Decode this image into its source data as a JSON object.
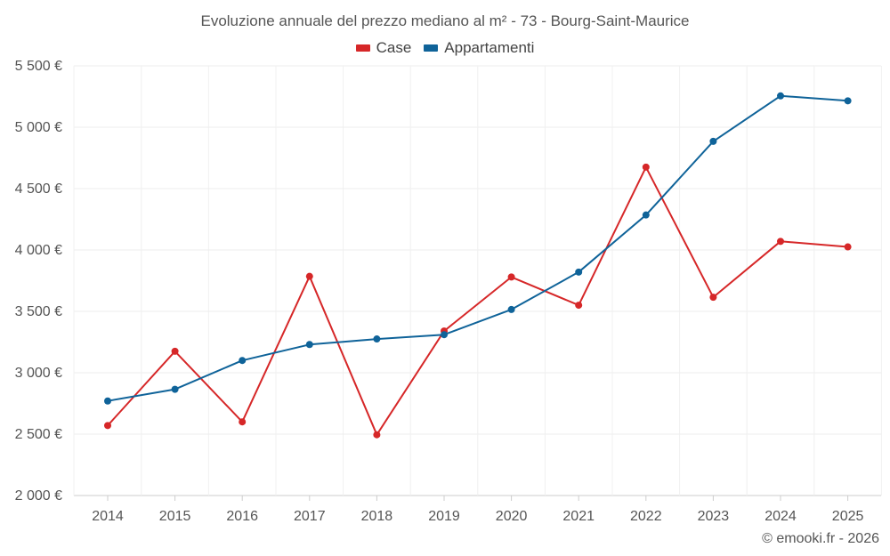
{
  "chart_data": {
    "type": "line",
    "title": "Evoluzione annuale del prezzo mediano al m² - 73 - Bourg-Saint-Maurice",
    "categories": [
      "2014",
      "2015",
      "2016",
      "2017",
      "2018",
      "2019",
      "2020",
      "2021",
      "2022",
      "2023",
      "2024",
      "2025"
    ],
    "series": [
      {
        "name": "Case",
        "color": "#d62728",
        "values": [
          2570,
          3175,
          2600,
          3785,
          2495,
          3340,
          3780,
          3550,
          4675,
          3615,
          4070,
          4025
        ]
      },
      {
        "name": "Appartamenti",
        "color": "#0f6399",
        "values": [
          2770,
          2865,
          3100,
          3230,
          3275,
          3310,
          3515,
          3820,
          4285,
          4885,
          5255,
          5215
        ]
      }
    ],
    "ylim": [
      2000,
      5500
    ],
    "yticks": [
      2000,
      2500,
      3000,
      3500,
      4000,
      4500,
      5000,
      5500
    ],
    "ytick_labels": [
      "2 000 €",
      "2 500 €",
      "3 000 €",
      "3 500 €",
      "4 000 €",
      "4 500 €",
      "5 000 €",
      "5 500 €"
    ],
    "xlabel": "",
    "ylabel": "",
    "grid": true,
    "legend": "top-center"
  },
  "footer": "© emooki.fr - 2026"
}
